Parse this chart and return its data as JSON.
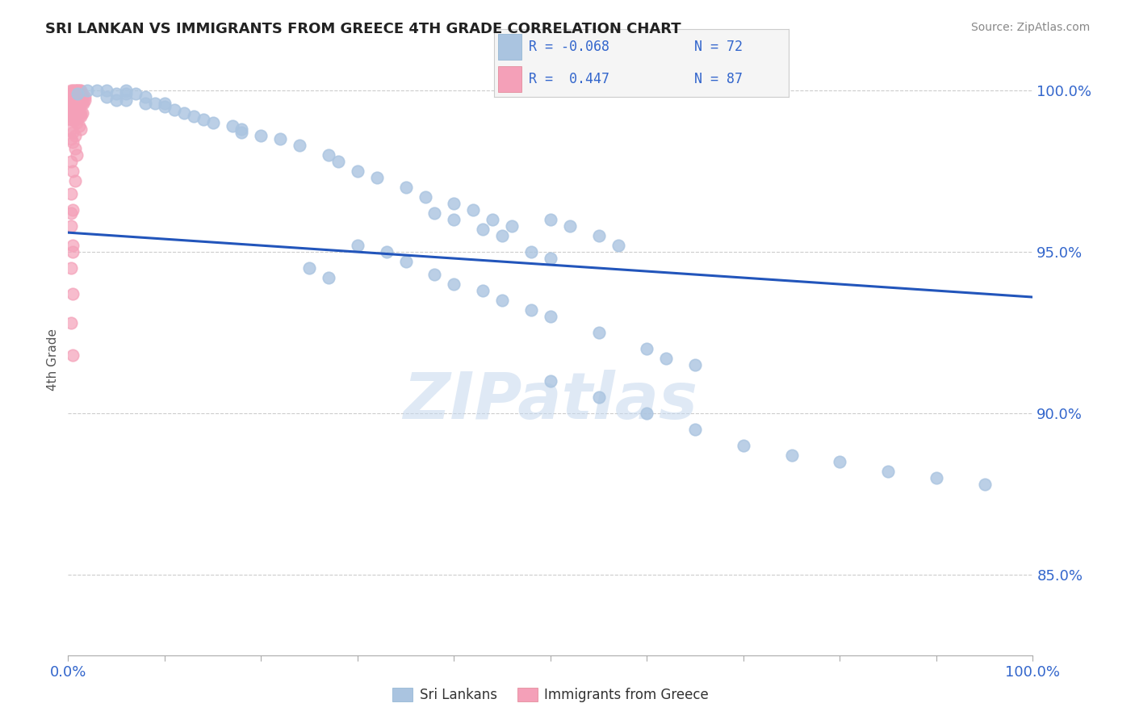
{
  "title": "SRI LANKAN VS IMMIGRANTS FROM GREECE 4TH GRADE CORRELATION CHART",
  "source_text": "Source: ZipAtlas.com",
  "ylabel": "4th Grade",
  "xlim": [
    0.0,
    1.0
  ],
  "ylim": [
    0.825,
    1.008
  ],
  "yticks": [
    0.85,
    0.9,
    0.95,
    1.0
  ],
  "ytick_labels": [
    "85.0%",
    "90.0%",
    "95.0%",
    "100.0%"
  ],
  "blue_color": "#aac4e0",
  "pink_color": "#f4a0b8",
  "trendline_color": "#2255bb",
  "watermark": "ZIPatlas",
  "trendline_x": [
    0.0,
    1.0
  ],
  "trendline_y": [
    0.956,
    0.936
  ],
  "blue_scatter_x": [
    0.02,
    0.03,
    0.01,
    0.04,
    0.05,
    0.06,
    0.04,
    0.06,
    0.07,
    0.08,
    0.05,
    0.06,
    0.08,
    0.09,
    0.1,
    0.1,
    0.11,
    0.12,
    0.13,
    0.14,
    0.15,
    0.17,
    0.18,
    0.18,
    0.2,
    0.22,
    0.24,
    0.27,
    0.28,
    0.3,
    0.32,
    0.35,
    0.37,
    0.4,
    0.42,
    0.44,
    0.46,
    0.38,
    0.4,
    0.43,
    0.45,
    0.3,
    0.33,
    0.35,
    0.25,
    0.27,
    0.5,
    0.52,
    0.55,
    0.57,
    0.48,
    0.5,
    0.38,
    0.4,
    0.43,
    0.45,
    0.48,
    0.5,
    0.55,
    0.6,
    0.62,
    0.65,
    0.5,
    0.55,
    0.6,
    0.65,
    0.7,
    0.75,
    0.8,
    0.85,
    0.9,
    0.95
  ],
  "blue_scatter_y": [
    1.0,
    1.0,
    0.999,
    1.0,
    0.999,
    1.0,
    0.998,
    0.999,
    0.999,
    0.998,
    0.997,
    0.997,
    0.996,
    0.996,
    0.996,
    0.995,
    0.994,
    0.993,
    0.992,
    0.991,
    0.99,
    0.989,
    0.988,
    0.987,
    0.986,
    0.985,
    0.983,
    0.98,
    0.978,
    0.975,
    0.973,
    0.97,
    0.967,
    0.965,
    0.963,
    0.96,
    0.958,
    0.962,
    0.96,
    0.957,
    0.955,
    0.952,
    0.95,
    0.947,
    0.945,
    0.942,
    0.96,
    0.958,
    0.955,
    0.952,
    0.95,
    0.948,
    0.943,
    0.94,
    0.938,
    0.935,
    0.932,
    0.93,
    0.925,
    0.92,
    0.917,
    0.915,
    0.91,
    0.905,
    0.9,
    0.895,
    0.89,
    0.887,
    0.885,
    0.882,
    0.88,
    0.878
  ],
  "pink_scatter_x": [
    0.003,
    0.005,
    0.006,
    0.008,
    0.01,
    0.01,
    0.012,
    0.013,
    0.003,
    0.005,
    0.006,
    0.008,
    0.01,
    0.012,
    0.013,
    0.015,
    0.003,
    0.005,
    0.007,
    0.009,
    0.011,
    0.013,
    0.015,
    0.017,
    0.003,
    0.005,
    0.007,
    0.009,
    0.011,
    0.013,
    0.015,
    0.017,
    0.003,
    0.004,
    0.006,
    0.008,
    0.01,
    0.012,
    0.014,
    0.016,
    0.003,
    0.005,
    0.007,
    0.009,
    0.011,
    0.003,
    0.005,
    0.007,
    0.003,
    0.005,
    0.007,
    0.009,
    0.011,
    0.013,
    0.015,
    0.003,
    0.005,
    0.007,
    0.009,
    0.011,
    0.013,
    0.003,
    0.005,
    0.007,
    0.009,
    0.011,
    0.013,
    0.003,
    0.005,
    0.007,
    0.003,
    0.005,
    0.007,
    0.009,
    0.003,
    0.005,
    0.007,
    0.003,
    0.005,
    0.003,
    0.005,
    0.003,
    0.005,
    0.003,
    0.005,
    0.003,
    0.005
  ],
  "pink_scatter_y": [
    1.0,
    1.0,
    1.0,
    1.0,
    1.0,
    1.0,
    1.0,
    1.0,
    0.999,
    0.999,
    0.999,
    0.999,
    0.999,
    0.999,
    0.999,
    0.999,
    0.998,
    0.998,
    0.998,
    0.998,
    0.998,
    0.998,
    0.998,
    0.998,
    0.997,
    0.997,
    0.997,
    0.997,
    0.997,
    0.997,
    0.997,
    0.997,
    0.996,
    0.996,
    0.996,
    0.996,
    0.996,
    0.996,
    0.996,
    0.996,
    0.995,
    0.995,
    0.995,
    0.995,
    0.995,
    0.994,
    0.994,
    0.994,
    0.993,
    0.993,
    0.993,
    0.993,
    0.993,
    0.993,
    0.993,
    0.992,
    0.992,
    0.992,
    0.992,
    0.992,
    0.992,
    0.991,
    0.991,
    0.991,
    0.99,
    0.989,
    0.988,
    0.988,
    0.987,
    0.986,
    0.985,
    0.984,
    0.982,
    0.98,
    0.978,
    0.975,
    0.972,
    0.968,
    0.963,
    0.958,
    0.952,
    0.945,
    0.937,
    0.928,
    0.918,
    0.962,
    0.95
  ]
}
